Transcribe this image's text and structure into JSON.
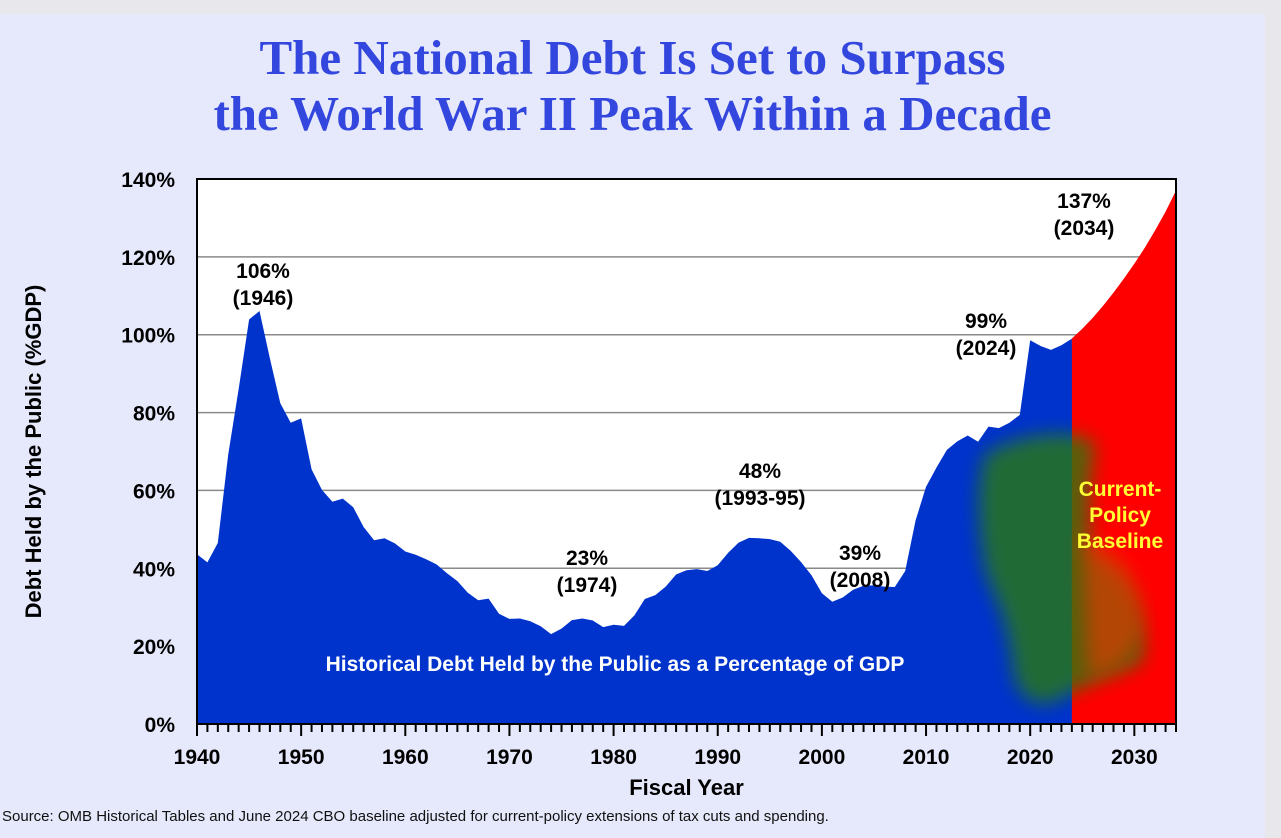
{
  "title_lines": [
    "The National Debt Is Set to Surpass",
    "the World War II Peak Within a Decade"
  ],
  "source": "Source: OMB Historical Tables and June 2024 CBO baseline adjusted for current-policy extensions of tax cuts and spending.",
  "colors": {
    "title": "#3346dd",
    "historical": "#0033cc",
    "projection": "#ff0000",
    "baseline_label": "#ffff33"
  },
  "chart_data": {
    "type": "area",
    "xlabel": "Fiscal Year",
    "ylabel": "Debt Held by the Public (%GDP)",
    "xlim": [
      1940,
      2034
    ],
    "ylim": [
      0,
      140
    ],
    "y_ticks": [
      "0%",
      "20%",
      "40%",
      "60%",
      "80%",
      "100%",
      "120%",
      "140%"
    ],
    "x_ticks": [
      "1940",
      "1950",
      "1960",
      "1970",
      "1980",
      "1990",
      "2000",
      "2010",
      "2020",
      "2030"
    ],
    "grid": true,
    "series": [
      {
        "label": "Historical Debt Held by the Public as a Percentage of GDP",
        "x": [
          1940,
          1941,
          1942,
          1943,
          1944,
          1945,
          1946,
          1947,
          1948,
          1949,
          1950,
          1951,
          1952,
          1953,
          1954,
          1955,
          1956,
          1957,
          1958,
          1959,
          1960,
          1961,
          1962,
          1963,
          1964,
          1965,
          1966,
          1967,
          1968,
          1969,
          1970,
          1971,
          1972,
          1973,
          1974,
          1975,
          1976,
          1977,
          1978,
          1979,
          1980,
          1981,
          1982,
          1983,
          1984,
          1985,
          1986,
          1987,
          1988,
          1989,
          1990,
          1991,
          1992,
          1993,
          1994,
          1995,
          1996,
          1997,
          1998,
          1999,
          2000,
          2001,
          2002,
          2003,
          2004,
          2005,
          2006,
          2007,
          2008,
          2009,
          2010,
          2011,
          2012,
          2013,
          2014,
          2015,
          2016,
          2017,
          2018,
          2019,
          2020,
          2021,
          2022,
          2023,
          2024
        ],
        "values": [
          43.6,
          41.5,
          46.5,
          69.2,
          86.1,
          103.9,
          106.1,
          93.9,
          82.4,
          77.4,
          78.5,
          65.4,
          60.1,
          57.1,
          57.9,
          55.7,
          50.6,
          47.2,
          47.7,
          46.4,
          44.3,
          43.5,
          42.3,
          41.0,
          38.7,
          36.7,
          33.7,
          31.8,
          32.2,
          28.3,
          27.0,
          27.1,
          26.4,
          25.1,
          23.1,
          24.5,
          26.7,
          27.1,
          26.6,
          24.9,
          25.5,
          25.2,
          27.9,
          32.1,
          33.1,
          35.3,
          38.4,
          39.5,
          39.8,
          39.3,
          40.8,
          44.0,
          46.6,
          47.8,
          47.7,
          47.5,
          46.8,
          44.5,
          41.6,
          38.2,
          33.6,
          31.4,
          32.5,
          34.5,
          35.5,
          35.6,
          35.3,
          35.2,
          39.3,
          52.3,
          60.9,
          65.9,
          70.4,
          72.6,
          74.1,
          72.5,
          76.4,
          76.0,
          77.4,
          79.4,
          98.6,
          97.1,
          96.1,
          97.3,
          99.0
        ]
      },
      {
        "label": "Current-Policy Baseline",
        "label_lines": [
          "Current-",
          "Policy",
          "Baseline"
        ],
        "x": [
          2024,
          2025,
          2026,
          2027,
          2028,
          2029,
          2030,
          2031,
          2032,
          2033,
          2034
        ],
        "values": [
          99.0,
          101.5,
          104.3,
          107.4,
          110.8,
          114.4,
          118.2,
          122.3,
          126.8,
          131.6,
          137.0
        ]
      }
    ],
    "annotations": [
      {
        "value": "106%",
        "year": "(1946)",
        "x": 1946,
        "y": 106
      },
      {
        "value": "23%",
        "year": "(1974)",
        "x": 1974,
        "y": 23
      },
      {
        "value": "48%",
        "year": "(1993-95)",
        "x": 1994,
        "y": 48
      },
      {
        "value": "39%",
        "year": "(2008)",
        "x": 2008,
        "y": 39
      },
      {
        "value": "99%",
        "year": "(2024)",
        "x": 2024,
        "y": 99
      },
      {
        "value": "137%",
        "year": "(2034)",
        "x": 2034,
        "y": 137
      }
    ]
  }
}
